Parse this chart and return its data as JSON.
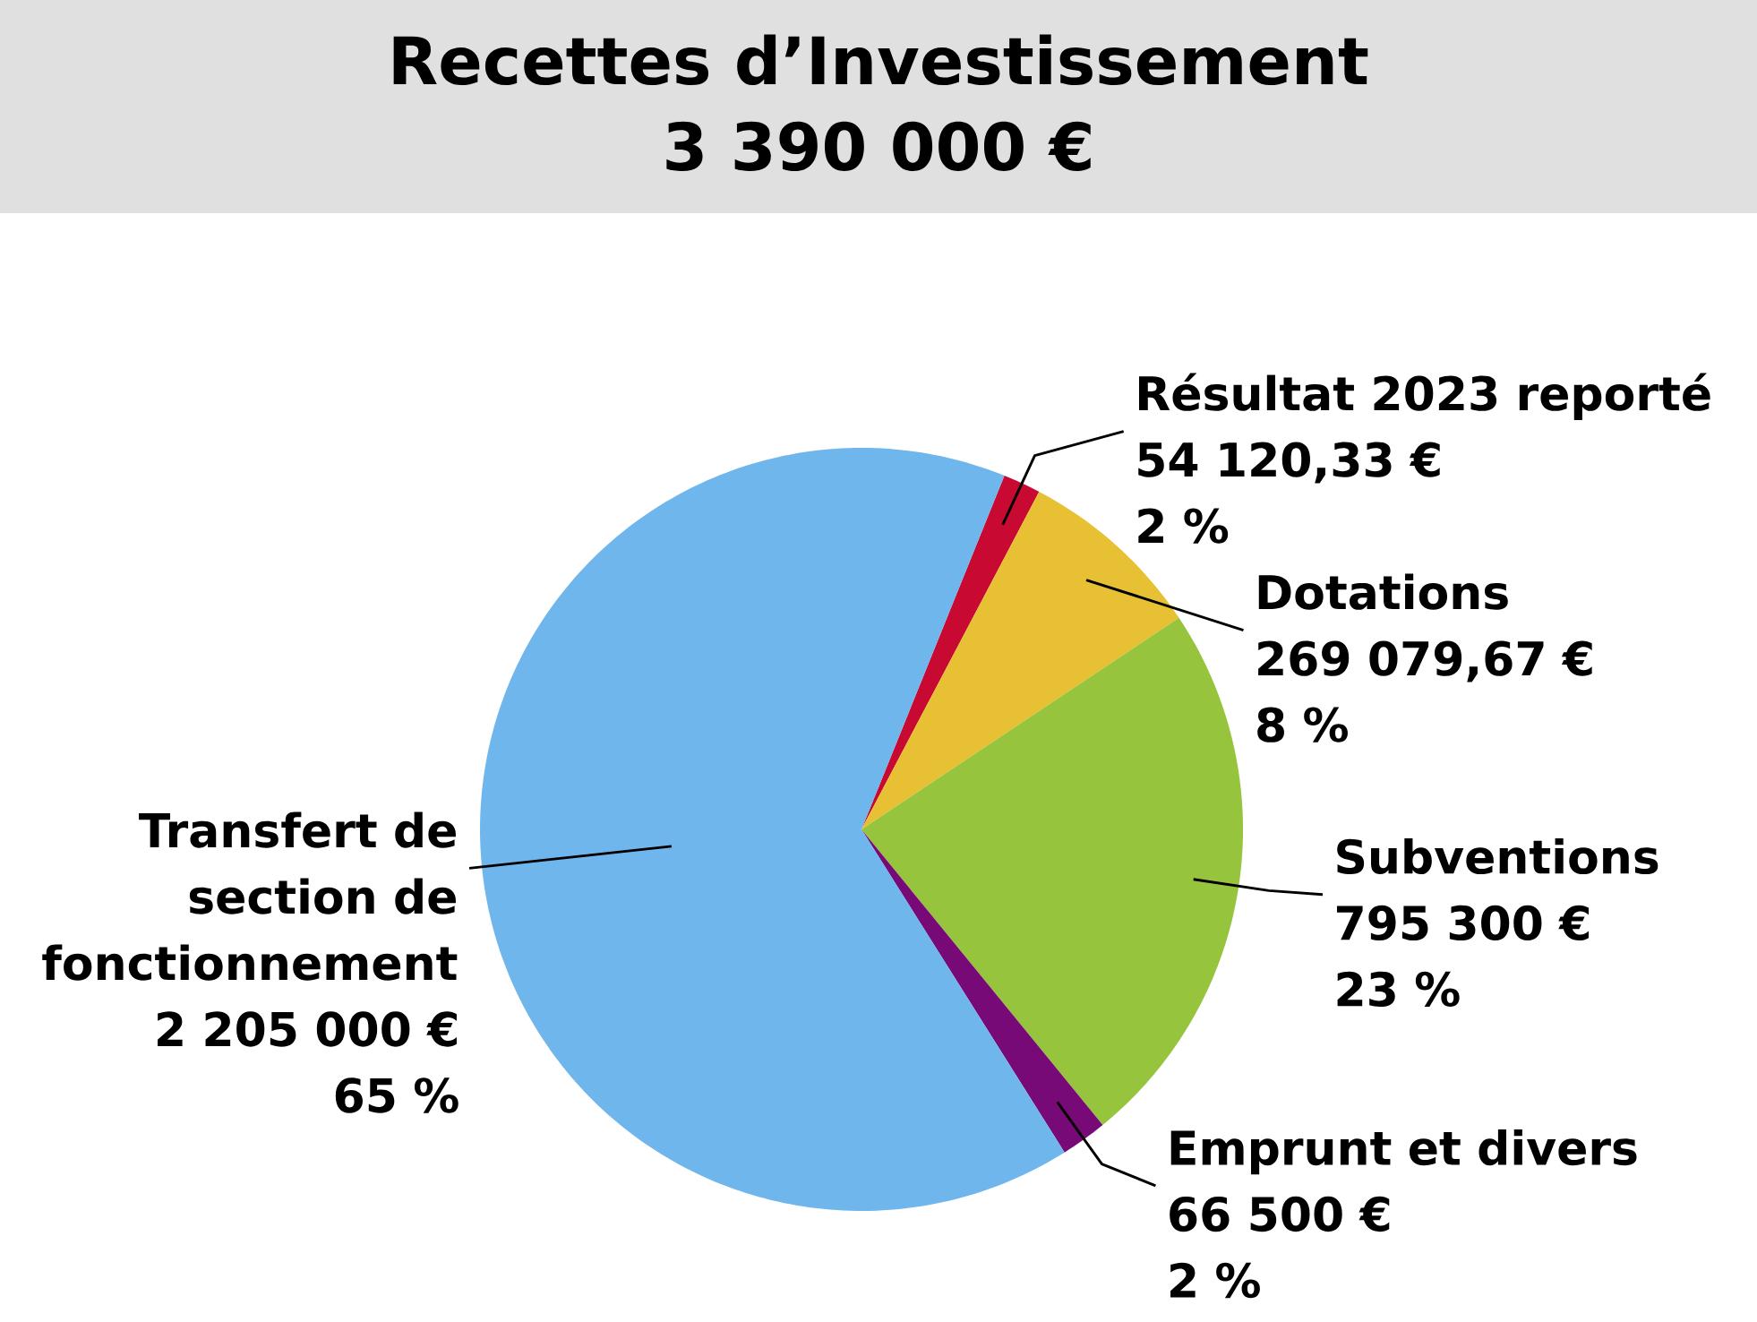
{
  "chart_data": {
    "type": "pie",
    "title": "Recettes d’Investissement",
    "subtitle": "3 390 000 €",
    "categories": [
      "Résultat 2023 reporté",
      "Dotations",
      "Subventions",
      "Emprunt et divers",
      "Transfert de section de fonctionnement"
    ],
    "values": [
      54120.33,
      269079.67,
      795300,
      66500,
      2205000
    ],
    "colors": [
      "#c80a32",
      "#e8c034",
      "#96c43c",
      "#780a78",
      "#6eb6ec"
    ],
    "value_labels": [
      "54 120,33 € 2 %",
      "269 079,67 € 8 %",
      "795 300 € 23 %",
      "66 500 € 2 %",
      "2 205 000 € 65 %"
    ]
  }
}
